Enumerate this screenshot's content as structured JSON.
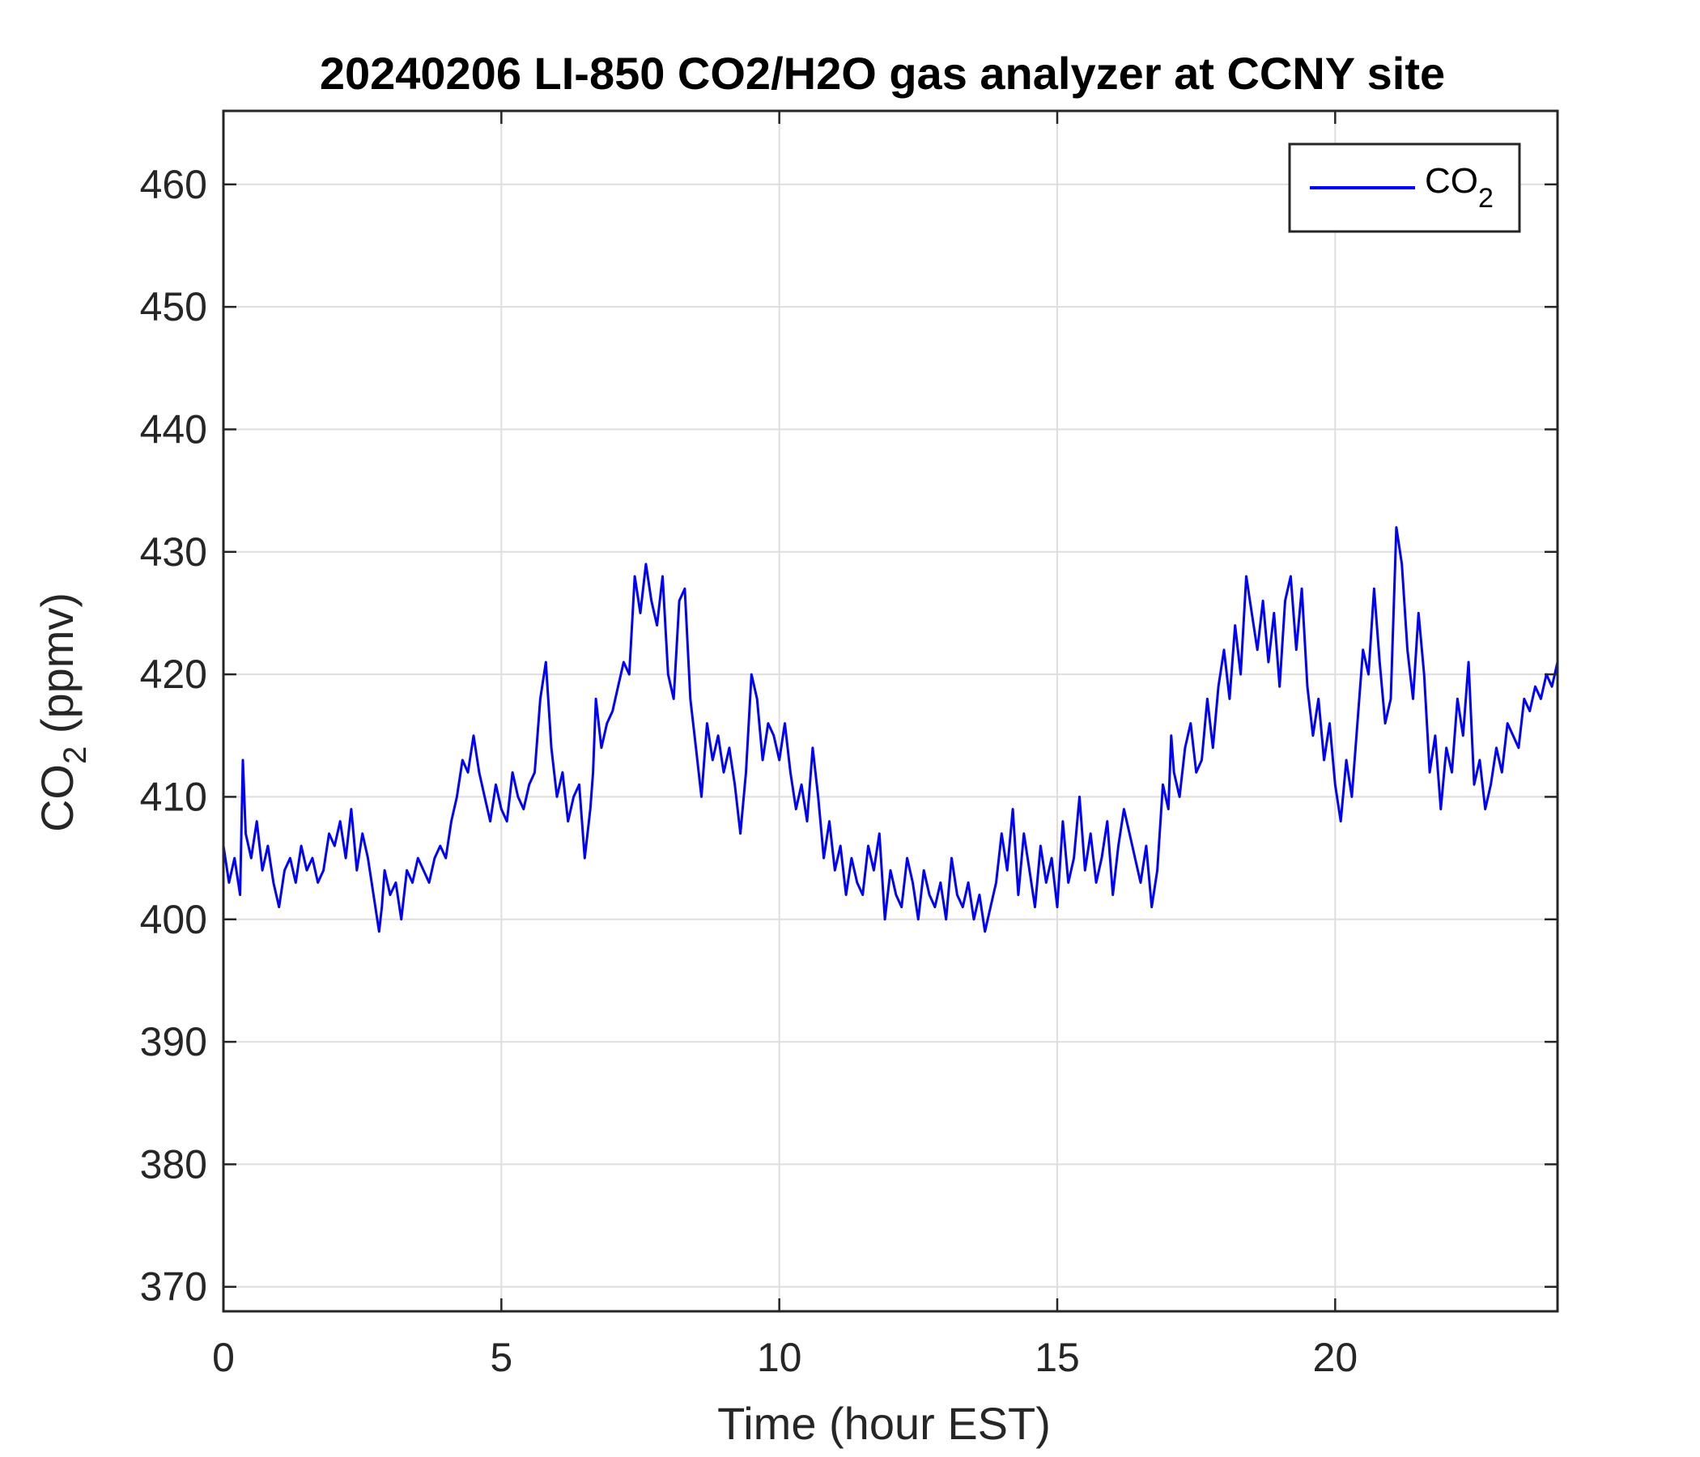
{
  "chart_data": {
    "type": "line",
    "title": "20240206 LI-850 CO2/H2O gas analyzer at CCNY site",
    "xlabel": "Time (hour EST)",
    "ylabel": {
      "main": "CO",
      "sub": "2",
      "rest": " (ppmv)"
    },
    "xlim": [
      0,
      24
    ],
    "ylim": [
      368,
      466
    ],
    "xticks": [
      0,
      5,
      10,
      15,
      20
    ],
    "yticks": [
      370,
      380,
      390,
      400,
      410,
      420,
      430,
      440,
      450,
      460
    ],
    "grid": true,
    "legend": {
      "position": "top-right",
      "main": "CO",
      "sub": "2"
    },
    "series": [
      {
        "name": "CO2",
        "color": "#0000ff",
        "x": [
          0.0,
          0.1,
          0.2,
          0.3,
          0.35,
          0.4,
          0.5,
          0.6,
          0.7,
          0.8,
          0.9,
          1.0,
          1.1,
          1.2,
          1.3,
          1.4,
          1.5,
          1.6,
          1.7,
          1.8,
          1.9,
          2.0,
          2.1,
          2.2,
          2.3,
          2.4,
          2.5,
          2.6,
          2.7,
          2.8,
          2.85,
          2.9,
          3.0,
          3.1,
          3.2,
          3.3,
          3.4,
          3.5,
          3.6,
          3.7,
          3.8,
          3.9,
          4.0,
          4.1,
          4.2,
          4.3,
          4.4,
          4.5,
          4.6,
          4.7,
          4.8,
          4.9,
          5.0,
          5.1,
          5.2,
          5.3,
          5.4,
          5.5,
          5.6,
          5.7,
          5.8,
          5.9,
          6.0,
          6.1,
          6.2,
          6.3,
          6.4,
          6.5,
          6.6,
          6.65,
          6.7,
          6.8,
          6.9,
          7.0,
          7.1,
          7.2,
          7.3,
          7.4,
          7.5,
          7.6,
          7.7,
          7.8,
          7.9,
          8.0,
          8.1,
          8.2,
          8.3,
          8.4,
          8.5,
          8.6,
          8.7,
          8.8,
          8.9,
          9.0,
          9.1,
          9.2,
          9.3,
          9.4,
          9.5,
          9.6,
          9.7,
          9.8,
          9.9,
          10.0,
          10.1,
          10.2,
          10.3,
          10.4,
          10.5,
          10.6,
          10.7,
          10.8,
          10.9,
          11.0,
          11.1,
          11.2,
          11.3,
          11.4,
          11.5,
          11.6,
          11.7,
          11.8,
          11.9,
          12.0,
          12.1,
          12.2,
          12.3,
          12.4,
          12.5,
          12.6,
          12.7,
          12.8,
          12.9,
          13.0,
          13.1,
          13.2,
          13.3,
          13.4,
          13.5,
          13.6,
          13.7,
          13.8,
          13.9,
          14.0,
          14.1,
          14.2,
          14.3,
          14.4,
          14.5,
          14.6,
          14.7,
          14.8,
          14.9,
          15.0,
          15.1,
          15.2,
          15.3,
          15.4,
          15.5,
          15.6,
          15.7,
          15.8,
          15.9,
          16.0,
          16.1,
          16.2,
          16.3,
          16.4,
          16.5,
          16.6,
          16.7,
          16.8,
          16.9,
          17.0,
          17.05,
          17.1,
          17.2,
          17.3,
          17.4,
          17.5,
          17.6,
          17.7,
          17.8,
          17.9,
          18.0,
          18.1,
          18.2,
          18.3,
          18.4,
          18.5,
          18.6,
          18.7,
          18.8,
          18.9,
          19.0,
          19.1,
          19.2,
          19.3,
          19.4,
          19.5,
          19.6,
          19.7,
          19.8,
          19.9,
          20.0,
          20.1,
          20.2,
          20.3,
          20.4,
          20.5,
          20.6,
          20.7,
          20.8,
          20.9,
          21.0,
          21.1,
          21.2,
          21.3,
          21.4,
          21.5,
          21.6,
          21.7,
          21.8,
          21.9,
          22.0,
          22.1,
          22.2,
          22.3,
          22.4,
          22.5,
          22.6,
          22.7,
          22.8,
          22.9,
          23.0,
          23.1,
          23.2,
          23.3,
          23.4,
          23.5,
          23.6,
          23.7,
          23.8,
          23.9,
          24.0
        ],
        "values": [
          406,
          403,
          405,
          402,
          413,
          407,
          405,
          408,
          404,
          406,
          403,
          401,
          404,
          405,
          403,
          406,
          404,
          405,
          403,
          404,
          407,
          406,
          408,
          405,
          409,
          404,
          407,
          405,
          402,
          399,
          401,
          404,
          402,
          403,
          400,
          404,
          403,
          405,
          404,
          403,
          405,
          406,
          405,
          408,
          410,
          413,
          412,
          415,
          412,
          410,
          408,
          411,
          409,
          408,
          412,
          410,
          409,
          411,
          412,
          418,
          421,
          414,
          410,
          412,
          408,
          410,
          411,
          405,
          409,
          412,
          418,
          414,
          416,
          417,
          419,
          421,
          420,
          428,
          425,
          429,
          426,
          424,
          428,
          420,
          418,
          426,
          427,
          418,
          414,
          410,
          416,
          413,
          415,
          412,
          414,
          411,
          407,
          412,
          420,
          418,
          413,
          416,
          415,
          413,
          416,
          412,
          409,
          411,
          408,
          414,
          410,
          405,
          408,
          404,
          406,
          402,
          405,
          403,
          402,
          406,
          404,
          407,
          400,
          404,
          402,
          401,
          405,
          403,
          400,
          404,
          402,
          401,
          403,
          400,
          405,
          402,
          401,
          403,
          400,
          402,
          399,
          401,
          403,
          407,
          404,
          409,
          402,
          407,
          404,
          401,
          406,
          403,
          405,
          401,
          408,
          403,
          405,
          410,
          404,
          407,
          403,
          405,
          408,
          402,
          406,
          409,
          407,
          405,
          403,
          406,
          401,
          404,
          411,
          409,
          415,
          412,
          410,
          414,
          416,
          412,
          413,
          418,
          414,
          419,
          422,
          418,
          424,
          420,
          428,
          425,
          422,
          426,
          421,
          425,
          419,
          426,
          428,
          422,
          427,
          419,
          415,
          418,
          413,
          416,
          411,
          408,
          413,
          410,
          416,
          422,
          420,
          427,
          421,
          416,
          418,
          432,
          429,
          422,
          418,
          425,
          420,
          412,
          415,
          409,
          414,
          412,
          418,
          415,
          421,
          411,
          413,
          409,
          411,
          414,
          412,
          416,
          415,
          414,
          418,
          417,
          419,
          418,
          420,
          419,
          421
        ]
      }
    ]
  }
}
